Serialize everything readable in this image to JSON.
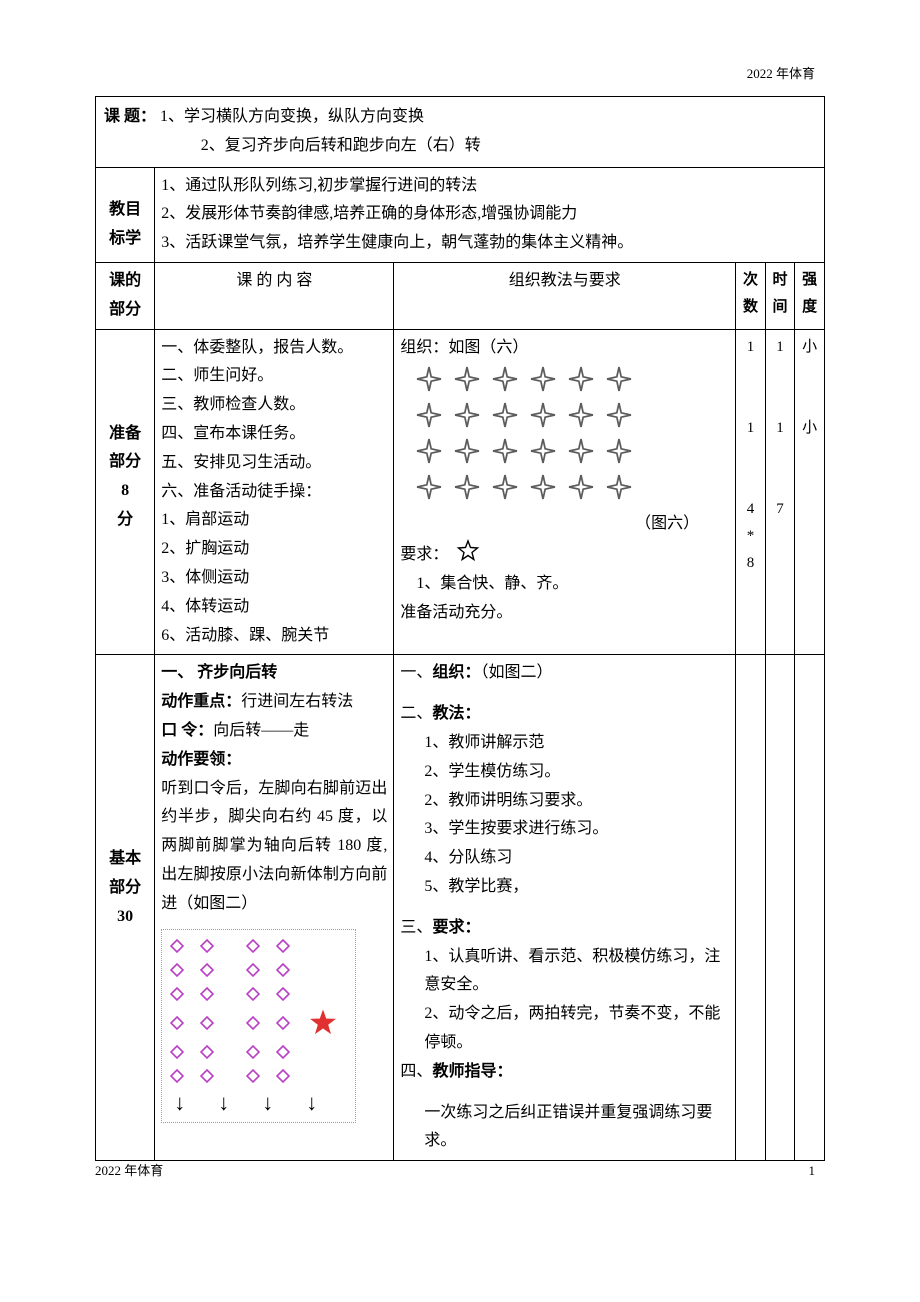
{
  "header_right": "2022 年体育",
  "footer_left": "2022 年体育",
  "footer_page": "1",
  "topic_label": "课    题：",
  "topic_lines": [
    "1、学习横队方向变换，纵队方向变换",
    "2、复习齐步向后转和跑步向左（右）转"
  ],
  "goal_label_1": "教目",
  "goal_label_2": "标学",
  "goal_lines": [
    "1、通过队形队列练习,初步掌握行进间的转法",
    "2、发展形体节奏韵律感,培养正确的身体形态,增强协调能力",
    "3、活跃课堂气氛，培养学生健康向上，朝气蓬勃的集体主义精神。"
  ],
  "col_labels": {
    "section": "课的\n部分",
    "content": "课  的  内  容",
    "method": "组织教法与要求",
    "count": "次\n数",
    "time": "时\n间",
    "intensity": "强\n度"
  },
  "prep": {
    "label": "准备\n部分\n8\n分",
    "content_lines": [
      "一、体委整队，报告人数。",
      "二、师生问好。",
      "三、教师检查人数。",
      "四、宣布本课任务。",
      "五、安排见习生活动。",
      "六、准备活动徒手操：",
      "1、肩部运动",
      "2、扩胸运动",
      "3、体侧运动",
      "4、体转运动",
      "6、活动膝、踝、腕关节"
    ],
    "method": {
      "org_label": "组织：如图（六）",
      "fig_caption": "（图六）",
      "req_label": "要求：",
      "req_lines": [
        "1、集合快、静、齐。",
        "准备活动充分。"
      ]
    },
    "count_col": [
      "1",
      "",
      "",
      "1",
      "",
      "",
      "4",
      "*",
      "8"
    ],
    "time_col": [
      "1",
      "",
      "",
      "1",
      "",
      "",
      "7",
      "",
      ""
    ],
    "intensity_col": [
      "小",
      "",
      "",
      "小",
      "",
      "",
      "",
      "",
      ""
    ]
  },
  "main": {
    "label": "基本\n部分\n30",
    "content": {
      "title_line": "一、        齐步向后转",
      "point_label": "动作重点：",
      "point_text": "行进间左右转法",
      "cmd_label": "口        令：",
      "cmd_text": "向后转——走",
      "tech_label": "动作要领：",
      "tech_text": "听到口令后，左脚向右脚前迈出约半步，脚尖向右约 45 度，以两脚前脚掌为轴向后转 180 度,出左脚按原小法向新体制方向前进（如图二）"
    },
    "method": {
      "org_label": "一、组织：",
      "org_text": "（如图二）",
      "teach_label": "二、教法：",
      "teach_lines": [
        "1、教师讲解示范",
        "2、学生模仿练习。",
        "2、教师讲明练习要求。",
        "3、学生按要求进行练习。",
        "4、分队练习",
        "5、教学比赛，"
      ],
      "req_label": "三、要求：",
      "req_lines": [
        "1、认真听讲、看示范、积极模仿练习，注意安全。",
        "2、动令之后，两拍转完，节奏不变，不能停顿。"
      ],
      "guide_label": "四、教师指导：",
      "guide_text": "一次练习之后纠正错误并重复强调练习要求。"
    }
  },
  "colors": {
    "four_star_outline": "#5b5b5b",
    "rhombus_purple": "#b93fc4",
    "star_red": "#e03030",
    "star_outline": "#000000"
  }
}
